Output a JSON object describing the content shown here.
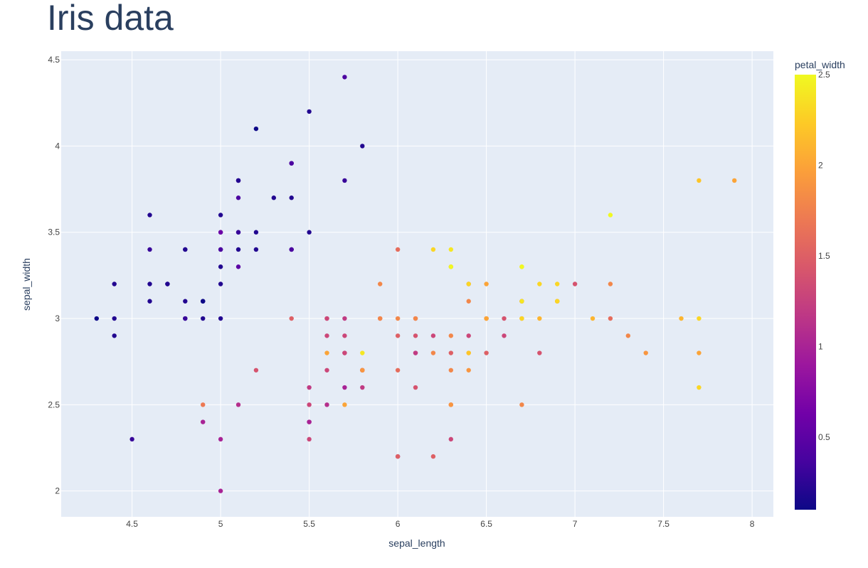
{
  "chart_data": {
    "type": "scatter",
    "title": "Iris data",
    "xlabel": "sepal_length",
    "ylabel": "sepal_width",
    "xlim": [
      4.1,
      8.12
    ],
    "ylim": [
      1.85,
      4.55
    ],
    "xticks": [
      4.5,
      5,
      5.5,
      6,
      6.5,
      7,
      7.5,
      8
    ],
    "yticks": [
      2,
      2.5,
      3,
      3.5,
      4,
      4.5
    ],
    "grid": true,
    "plot_bgcolor": "#e5ecf6",
    "grid_color": "#ffffff",
    "colorbar": {
      "title": "petal_width",
      "range": [
        0.1,
        2.5
      ],
      "ticks": [
        0.5,
        1,
        1.5,
        2,
        2.5
      ],
      "colorscale": [
        "#0d0887",
        "#46039f",
        "#7201a8",
        "#9c179e",
        "#bd3786",
        "#d8576b",
        "#ed7953",
        "#fb9f3a",
        "#fdca26",
        "#f0f921"
      ]
    },
    "points": [
      [
        5.1,
        3.5,
        0.2
      ],
      [
        4.9,
        3.0,
        0.2
      ],
      [
        4.7,
        3.2,
        0.2
      ],
      [
        4.6,
        3.1,
        0.2
      ],
      [
        5.0,
        3.6,
        0.2
      ],
      [
        5.4,
        3.9,
        0.4
      ],
      [
        4.6,
        3.4,
        0.3
      ],
      [
        5.0,
        3.4,
        0.2
      ],
      [
        4.4,
        2.9,
        0.2
      ],
      [
        4.9,
        3.1,
        0.1
      ],
      [
        5.4,
        3.7,
        0.2
      ],
      [
        4.8,
        3.4,
        0.2
      ],
      [
        4.8,
        3.0,
        0.1
      ],
      [
        4.3,
        3.0,
        0.1
      ],
      [
        5.8,
        4.0,
        0.2
      ],
      [
        5.7,
        4.4,
        0.4
      ],
      [
        5.4,
        3.9,
        0.4
      ],
      [
        5.1,
        3.5,
        0.3
      ],
      [
        5.7,
        3.8,
        0.3
      ],
      [
        5.1,
        3.8,
        0.3
      ],
      [
        5.4,
        3.4,
        0.2
      ],
      [
        5.1,
        3.7,
        0.4
      ],
      [
        4.6,
        3.6,
        0.2
      ],
      [
        5.1,
        3.3,
        0.5
      ],
      [
        4.8,
        3.4,
        0.2
      ],
      [
        5.0,
        3.0,
        0.2
      ],
      [
        5.0,
        3.4,
        0.4
      ],
      [
        5.2,
        3.5,
        0.2
      ],
      [
        5.2,
        3.4,
        0.2
      ],
      [
        4.7,
        3.2,
        0.2
      ],
      [
        4.8,
        3.1,
        0.2
      ],
      [
        5.4,
        3.4,
        0.4
      ],
      [
        5.2,
        4.1,
        0.1
      ],
      [
        5.5,
        4.2,
        0.2
      ],
      [
        4.9,
        3.1,
        0.1
      ],
      [
        5.0,
        3.2,
        0.2
      ],
      [
        5.5,
        3.5,
        0.2
      ],
      [
        4.9,
        3.1,
        0.1
      ],
      [
        4.4,
        3.0,
        0.2
      ],
      [
        5.1,
        3.4,
        0.2
      ],
      [
        5.0,
        3.5,
        0.3
      ],
      [
        4.5,
        2.3,
        0.3
      ],
      [
        4.4,
        3.2,
        0.2
      ],
      [
        5.0,
        3.5,
        0.6
      ],
      [
        5.1,
        3.8,
        0.4
      ],
      [
        4.8,
        3.0,
        0.3
      ],
      [
        5.1,
        3.8,
        0.2
      ],
      [
        4.6,
        3.2,
        0.2
      ],
      [
        5.3,
        3.7,
        0.2
      ],
      [
        5.0,
        3.3,
        0.2
      ],
      [
        7.0,
        3.2,
        1.4
      ],
      [
        6.4,
        3.2,
        1.5
      ],
      [
        6.9,
        3.1,
        1.5
      ],
      [
        5.5,
        2.3,
        1.3
      ],
      [
        6.5,
        2.8,
        1.5
      ],
      [
        5.7,
        2.8,
        1.3
      ],
      [
        6.3,
        3.3,
        1.6
      ],
      [
        4.9,
        2.4,
        1.0
      ],
      [
        6.6,
        2.9,
        1.3
      ],
      [
        5.2,
        2.7,
        1.4
      ],
      [
        5.0,
        2.0,
        1.0
      ],
      [
        5.9,
        3.0,
        1.5
      ],
      [
        6.0,
        2.2,
        1.0
      ],
      [
        6.1,
        2.9,
        1.4
      ],
      [
        5.6,
        2.9,
        1.3
      ],
      [
        6.7,
        3.1,
        1.4
      ],
      [
        5.6,
        3.0,
        1.5
      ],
      [
        5.8,
        2.7,
        1.0
      ],
      [
        6.2,
        2.2,
        1.5
      ],
      [
        5.6,
        2.5,
        1.1
      ],
      [
        5.9,
        3.2,
        1.8
      ],
      [
        6.1,
        2.8,
        1.3
      ],
      [
        6.3,
        2.5,
        1.5
      ],
      [
        6.1,
        2.8,
        1.2
      ],
      [
        6.4,
        2.9,
        1.3
      ],
      [
        6.6,
        3.0,
        1.4
      ],
      [
        6.8,
        2.8,
        1.4
      ],
      [
        6.7,
        3.0,
        1.7
      ],
      [
        6.0,
        2.9,
        1.5
      ],
      [
        5.7,
        2.6,
        1.0
      ],
      [
        5.5,
        2.4,
        1.1
      ],
      [
        5.5,
        2.4,
        1.0
      ],
      [
        5.8,
        2.7,
        1.2
      ],
      [
        6.0,
        2.7,
        1.6
      ],
      [
        5.4,
        3.0,
        1.5
      ],
      [
        6.0,
        3.4,
        1.6
      ],
      [
        6.7,
        3.1,
        1.5
      ],
      [
        6.3,
        2.3,
        1.3
      ],
      [
        5.6,
        3.0,
        1.3
      ],
      [
        5.5,
        2.5,
        1.3
      ],
      [
        5.5,
        2.6,
        1.2
      ],
      [
        6.1,
        3.0,
        1.4
      ],
      [
        5.8,
        2.6,
        1.2
      ],
      [
        5.0,
        2.3,
        1.0
      ],
      [
        5.6,
        2.7,
        1.3
      ],
      [
        5.7,
        3.0,
        1.2
      ],
      [
        5.7,
        2.9,
        1.3
      ],
      [
        6.2,
        2.9,
        1.3
      ],
      [
        5.1,
        2.5,
        1.1
      ],
      [
        5.7,
        2.8,
        1.3
      ],
      [
        6.3,
        3.3,
        2.5
      ],
      [
        5.8,
        2.7,
        1.9
      ],
      [
        7.1,
        3.0,
        2.1
      ],
      [
        6.3,
        2.9,
        1.8
      ],
      [
        6.5,
        3.0,
        2.2
      ],
      [
        7.6,
        3.0,
        2.1
      ],
      [
        4.9,
        2.5,
        1.7
      ],
      [
        7.3,
        2.9,
        1.8
      ],
      [
        6.7,
        2.5,
        1.8
      ],
      [
        7.2,
        3.6,
        2.5
      ],
      [
        6.5,
        3.2,
        2.0
      ],
      [
        6.4,
        2.7,
        1.9
      ],
      [
        6.8,
        3.0,
        2.1
      ],
      [
        5.7,
        2.5,
        2.0
      ],
      [
        5.8,
        2.8,
        2.4
      ],
      [
        6.4,
        3.2,
        2.3
      ],
      [
        6.5,
        3.0,
        1.8
      ],
      [
        7.7,
        3.8,
        2.2
      ],
      [
        7.7,
        2.6,
        2.3
      ],
      [
        6.0,
        2.2,
        1.5
      ],
      [
        6.9,
        3.2,
        2.3
      ],
      [
        5.6,
        2.8,
        2.0
      ],
      [
        7.7,
        2.8,
        2.0
      ],
      [
        6.3,
        2.7,
        1.8
      ],
      [
        6.7,
        3.3,
        2.1
      ],
      [
        7.2,
        3.2,
        1.8
      ],
      [
        6.2,
        2.8,
        1.8
      ],
      [
        6.1,
        3.0,
        1.8
      ],
      [
        6.4,
        2.8,
        2.1
      ],
      [
        7.2,
        3.0,
        1.6
      ],
      [
        7.4,
        2.8,
        1.9
      ],
      [
        7.9,
        3.8,
        2.0
      ],
      [
        6.4,
        2.8,
        2.2
      ],
      [
        6.3,
        2.8,
        1.5
      ],
      [
        6.1,
        2.6,
        1.4
      ],
      [
        7.7,
        3.0,
        2.3
      ],
      [
        6.3,
        3.4,
        2.4
      ],
      [
        6.4,
        3.1,
        1.8
      ],
      [
        6.0,
        3.0,
        1.8
      ],
      [
        6.9,
        3.1,
        2.1
      ],
      [
        6.7,
        3.1,
        2.4
      ],
      [
        6.9,
        3.1,
        2.3
      ],
      [
        5.8,
        2.7,
        1.9
      ],
      [
        6.8,
        3.2,
        2.3
      ],
      [
        6.7,
        3.3,
        2.5
      ],
      [
        6.7,
        3.0,
        2.3
      ],
      [
        6.3,
        2.5,
        1.9
      ],
      [
        6.5,
        3.0,
        2.0
      ],
      [
        6.2,
        3.4,
        2.3
      ],
      [
        5.9,
        3.0,
        1.8
      ]
    ]
  }
}
